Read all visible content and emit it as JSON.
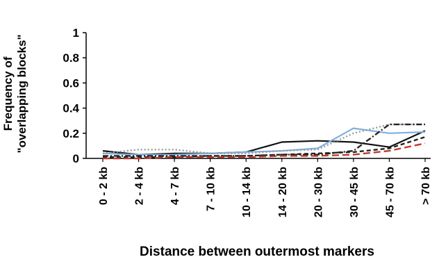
{
  "chart_data": {
    "type": "line",
    "xlabel": "Distance between outermost markers",
    "ylabel": "Frequency of \"overlapping blocks\"",
    "ylim": [
      0,
      1
    ],
    "yticks": [
      "0",
      "0.2",
      "0.4",
      "0.6",
      "0.8",
      "1"
    ],
    "categories": [
      "0 - 2 kb",
      "2 - 4 kb",
      "4 - 7 kb",
      "7 - 10 kb",
      "10 - 14 kb",
      "14 - 20 kb",
      "20 - 30 kb",
      "30 - 45 kb",
      "45 - 70 kb",
      "> 70 kb"
    ],
    "series": [
      {
        "values": [
          0.06,
          0.03,
          0.04,
          0.04,
          0.05,
          0.13,
          0.14,
          0.13,
          0.09,
          0.22
        ],
        "color": "#111111",
        "dash": "solid"
      },
      {
        "values": [
          0.04,
          0.03,
          0.03,
          0.04,
          0.05,
          0.06,
          0.08,
          0.24,
          0.2,
          0.21
        ],
        "color": "#7fb0e0",
        "dash": "solid"
      },
      {
        "values": [
          0.04,
          0.07,
          0.07,
          0.04,
          0.04,
          0.06,
          0.07,
          0.2,
          0.27,
          0.27
        ],
        "color": "#999999",
        "dash": "dot"
      },
      {
        "values": [
          0.02,
          0.02,
          0.02,
          0.02,
          0.02,
          0.03,
          0.03,
          0.06,
          0.27,
          0.27
        ],
        "color": "#222222",
        "dash": "dashdot"
      },
      {
        "values": [
          0.01,
          0.01,
          0.01,
          0.02,
          0.02,
          0.03,
          0.04,
          0.05,
          0.08,
          0.17
        ],
        "color": "#222222",
        "dash": "dash"
      },
      {
        "values": [
          0.0,
          0.0,
          0.01,
          0.01,
          0.01,
          0.02,
          0.02,
          0.03,
          0.06,
          0.12
        ],
        "color": "#c0392b",
        "dash": "longdash"
      }
    ]
  }
}
